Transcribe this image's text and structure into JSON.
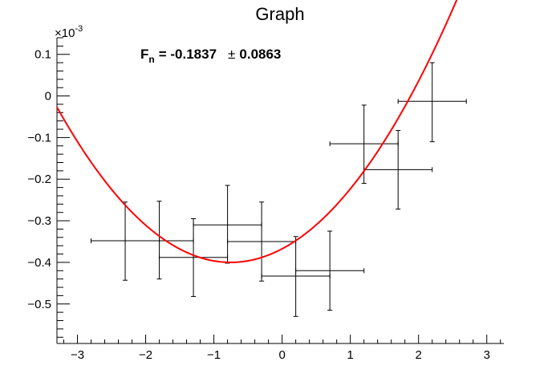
{
  "chart_data": {
    "type": "scatter",
    "title": "Graph",
    "xlabel": "",
    "ylabel": "",
    "xlim": [
      -3.3,
      3.25
    ],
    "ylim": [
      -0.595,
      0.14
    ],
    "y_multiplier_label": "×10",
    "y_multiplier_exponent": "-3",
    "x_ticks": [
      -3,
      -2,
      -1,
      0,
      1,
      2,
      3
    ],
    "x_tick_labels": [
      "−3",
      "−2",
      "−1",
      "0",
      "1",
      "2",
      "3"
    ],
    "y_ticks": [
      0.1,
      0,
      -0.1,
      -0.2,
      -0.3,
      -0.4,
      -0.5
    ],
    "y_tick_labels": [
      "0.1",
      "0",
      "−0.1",
      "−0.2",
      "−0.3",
      "−0.4",
      "−0.5"
    ],
    "grid": false,
    "series": [
      {
        "type": "errorbars",
        "color": "#000000",
        "points": [
          {
            "x": -2.3,
            "y": -0.348,
            "xlow": -2.8,
            "xhigh": -1.8,
            "ylow": -0.443,
            "yhigh": -0.255
          },
          {
            "x": -1.8,
            "y": -0.348,
            "xlow": -2.3,
            "xhigh": -1.3,
            "ylow": -0.44,
            "yhigh": -0.253
          },
          {
            "x": -1.3,
            "y": -0.388,
            "xlow": -1.8,
            "xhigh": -0.8,
            "ylow": -0.482,
            "yhigh": -0.295
          },
          {
            "x": -0.8,
            "y": -0.31,
            "xlow": -1.3,
            "xhigh": -0.3,
            "ylow": -0.402,
            "yhigh": -0.215
          },
          {
            "x": -0.3,
            "y": -0.35,
            "xlow": -0.8,
            "xhigh": 0.2,
            "ylow": -0.445,
            "yhigh": -0.255
          },
          {
            "x": 0.2,
            "y": -0.433,
            "xlow": -0.3,
            "xhigh": 0.7,
            "ylow": -0.53,
            "yhigh": -0.338
          },
          {
            "x": 0.7,
            "y": -0.42,
            "xlow": 0.2,
            "xhigh": 1.2,
            "ylow": -0.515,
            "yhigh": -0.325
          },
          {
            "x": 1.2,
            "y": -0.115,
            "xlow": 0.7,
            "xhigh": 1.7,
            "ylow": -0.21,
            "yhigh": -0.022
          },
          {
            "x": 1.7,
            "y": -0.177,
            "xlow": 1.2,
            "xhigh": 2.2,
            "ylow": -0.272,
            "yhigh": -0.083
          },
          {
            "x": 2.2,
            "y": -0.013,
            "xlow": 1.7,
            "xhigh": 2.7,
            "ylow": -0.11,
            "yhigh": 0.08
          }
        ]
      },
      {
        "type": "fit-curve",
        "color": "#ff0000",
        "function": "parabola",
        "coefficients": {
          "a": 0.0575,
          "b": 0.0866,
          "c": -0.3674
        },
        "x_range": [
          -3.3,
          2.75
        ]
      }
    ],
    "annotation": {
      "F_symbol": "F",
      "F_subscript": "n",
      "value_text": "= -0.1837",
      "pm_symbol": "±",
      "error_text": "0.0863"
    }
  }
}
